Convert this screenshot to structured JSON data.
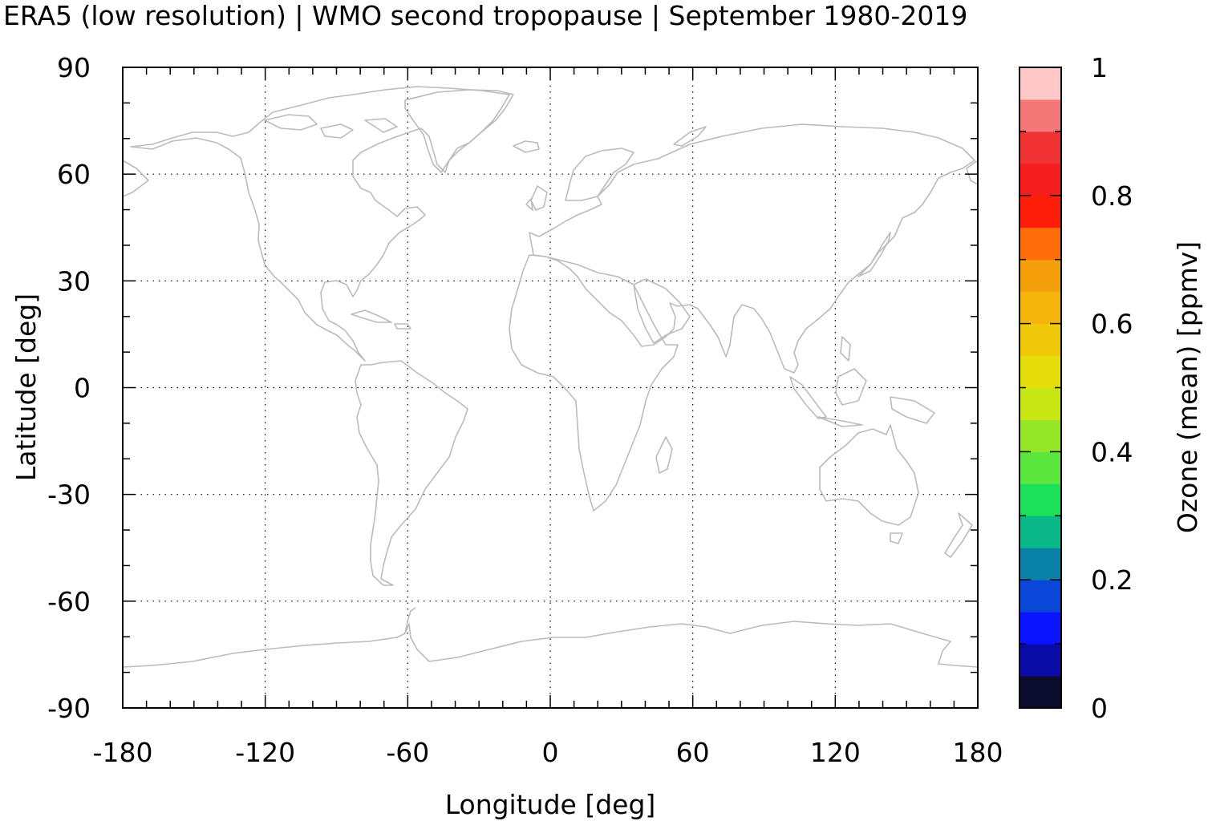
{
  "title": "ERA5 (low resolution) | WMO second tropopause | September 1980-2019",
  "chart_data": {
    "type": "heatmap",
    "title": "ERA5 (low resolution) | WMO second tropopause | September 1980-2019",
    "xlabel": "Longitude [deg]",
    "ylabel": "Latitude [deg]",
    "xlim": [
      -180,
      180
    ],
    "ylim": [
      -90,
      90
    ],
    "x_ticks": [
      -180,
      -120,
      -60,
      0,
      60,
      120,
      180
    ],
    "y_ticks": [
      90,
      60,
      30,
      0,
      -30,
      -60,
      -90
    ],
    "x_tick_labels": [
      "-180",
      "-120",
      "-60",
      "0",
      "60",
      "120",
      "180"
    ],
    "y_tick_labels": [
      "90",
      "60",
      "30",
      "0",
      "-30",
      "-60",
      "-90"
    ],
    "grid": true,
    "values": [],
    "colorbar": {
      "label": "Ozone (mean) [ppmv]",
      "range": [
        0,
        1
      ],
      "ticks": [
        0,
        0.2,
        0.4,
        0.6,
        0.8,
        1
      ],
      "tick_labels": [
        "0",
        "0.2",
        "0.4",
        "0.6",
        "0.8",
        "1"
      ],
      "colors": [
        "#0b0b2e",
        "#0a0aa6",
        "#0a14ff",
        "#0a46d8",
        "#0a82a8",
        "#0ab88a",
        "#1ae05a",
        "#5ae63c",
        "#96e628",
        "#c8e614",
        "#e6de0a",
        "#f0c80a",
        "#f5b40a",
        "#f5a00a",
        "#ff6e0a",
        "#ff1e0a",
        "#f51e1e",
        "#f03232",
        "#f57878",
        "#ffc8c8"
      ]
    }
  },
  "colors": {
    "coastline": "#bbbbbb",
    "axis": "#000000",
    "grid": "#000000"
  }
}
